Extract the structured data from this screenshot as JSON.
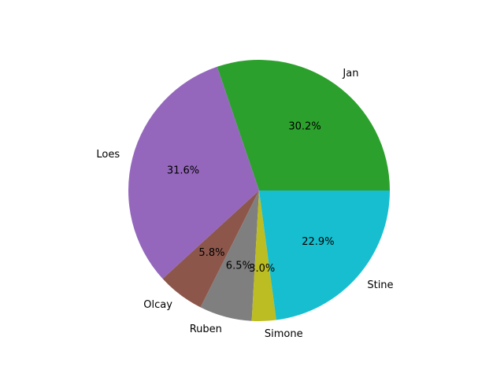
{
  "chart_data": {
    "type": "pie",
    "title": "",
    "slices": [
      {
        "label": "Jan",
        "value": 30.2,
        "pct_label": "30.2%",
        "color": "#2ca02c"
      },
      {
        "label": "Loes",
        "value": 31.6,
        "pct_label": "31.6%",
        "color": "#9467bd"
      },
      {
        "label": "Olcay",
        "value": 5.8,
        "pct_label": "5.8%",
        "color": "#8c564b"
      },
      {
        "label": "Ruben",
        "value": 6.5,
        "pct_label": "6.5%",
        "color": "#7f7f7f"
      },
      {
        "label": "Simone",
        "value": 3.0,
        "pct_label": "3.0%",
        "color": "#bcbd22"
      },
      {
        "label": "Stine",
        "value": 22.9,
        "pct_label": "22.9%",
        "color": "#17becf"
      }
    ],
    "start_angle_deg": 0,
    "direction": "counterclockwise",
    "legend": "none"
  }
}
